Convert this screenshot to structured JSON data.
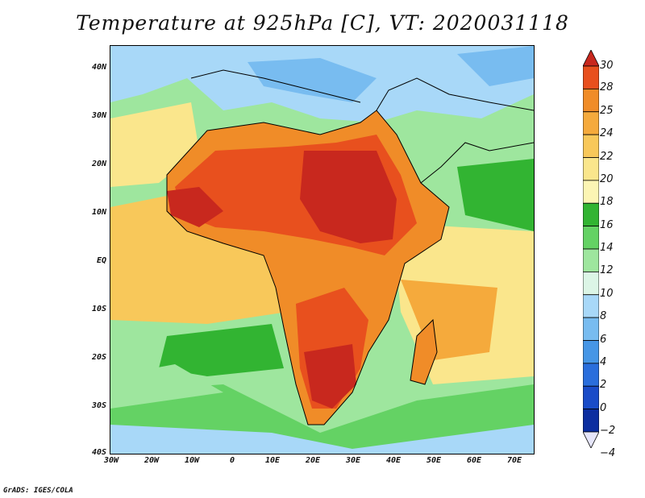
{
  "title": "Temperature at 925hPa [C], VT: 2020031118",
  "credit": "GrADS: IGES/COLA",
  "map": {
    "lat_labels": [
      "40N",
      "30N",
      "20N",
      "10N",
      "EQ",
      "10S",
      "20S",
      "30S",
      "40S"
    ],
    "lon_labels": [
      "30W",
      "20W",
      "10W",
      "0",
      "10E",
      "20E",
      "30E",
      "40E",
      "50E",
      "60E",
      "70E"
    ]
  },
  "colorbar": {
    "labels": [
      "30",
      "28",
      "25",
      "24",
      "22",
      "20",
      "18",
      "16",
      "14",
      "12",
      "10",
      "8",
      "6",
      "4",
      "2",
      "0",
      "−2",
      "−4"
    ],
    "colors": [
      "#c8281e",
      "#e8501e",
      "#f08c28",
      "#f5aa3c",
      "#f8c85a",
      "#fae68c",
      "#fcf5b4",
      "#32b432",
      "#64d264",
      "#9ee69e",
      "#dcf5e6",
      "#a8d8f8",
      "#78bcf0",
      "#4696e6",
      "#2a6edc",
      "#1a4cc8",
      "#0c2ea0",
      "#061878"
    ]
  }
}
